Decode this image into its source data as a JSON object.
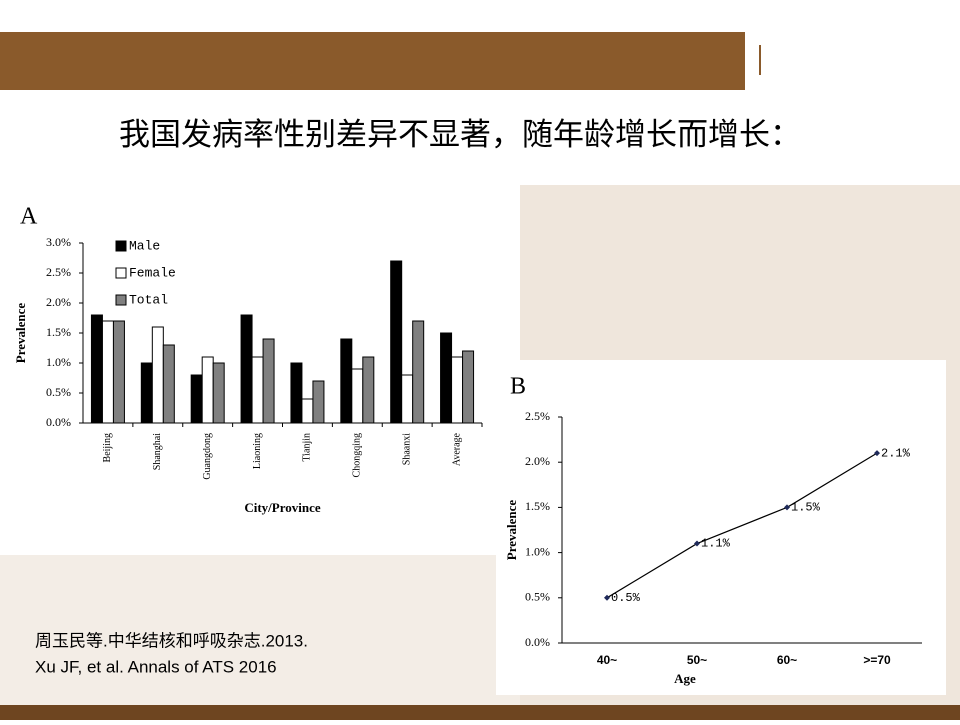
{
  "slide": {
    "title": "我国发病率性别差异不显著，随年龄增长而增长：",
    "citations": [
      "周玉民等.中华结核和呼吸杂志.2013.",
      "Xu JF, et al. Annals of ATS 2016"
    ]
  },
  "chart_data": [
    {
      "type": "bar",
      "label": "A",
      "ylabel": "Prevalence",
      "xlabel": "City/Province",
      "categories": [
        "Beijing",
        "Shanghai",
        "Guangdong",
        "Liaoning",
        "Tianjin",
        "Chongqing",
        "Shaanxi",
        "Average"
      ],
      "series": [
        {
          "name": "Male",
          "color": "#000000",
          "values": [
            1.8,
            1.0,
            0.8,
            1.8,
            1.0,
            1.4,
            2.7,
            1.5
          ]
        },
        {
          "name": "Female",
          "color": "#ffffff",
          "values": [
            1.7,
            1.6,
            1.1,
            1.1,
            0.4,
            0.9,
            0.8,
            1.1
          ]
        },
        {
          "name": "Total",
          "color": "#808080",
          "values": [
            1.7,
            1.3,
            1.0,
            1.4,
            0.7,
            1.1,
            1.7,
            1.2
          ]
        }
      ],
      "ylim": [
        0,
        3
      ],
      "yticks": [
        {
          "value": 0,
          "label": "0.0%"
        },
        {
          "value": 0.5,
          "label": "0.5%"
        },
        {
          "value": 1,
          "label": "1.0%"
        },
        {
          "value": 1.5,
          "label": "1.5%"
        },
        {
          "value": 2,
          "label": "2.0%"
        },
        {
          "value": 2.5,
          "label": "2.5%"
        },
        {
          "value": 3,
          "label": "3.0%"
        }
      ]
    },
    {
      "type": "line",
      "label": "B",
      "ylabel": "Prevalence",
      "xlabel": "Age",
      "color": "#1f2a5a",
      "categories": [
        "40~",
        "50~",
        "60~",
        ">=70"
      ],
      "values": [
        0.5,
        1.1,
        1.5,
        2.1
      ],
      "value_labels": [
        "0.5%",
        "1.1%",
        "1.5%",
        "2.1%"
      ],
      "ylim": [
        0,
        2.5
      ],
      "yticks": [
        {
          "value": 0,
          "label": "0.0%"
        },
        {
          "value": 0.5,
          "label": "0.5%"
        },
        {
          "value": 1,
          "label": "1.0%"
        },
        {
          "value": 1.5,
          "label": "1.5%"
        },
        {
          "value": 2,
          "label": "2.0%"
        },
        {
          "value": 2.5,
          "label": "2.5%"
        }
      ]
    }
  ]
}
